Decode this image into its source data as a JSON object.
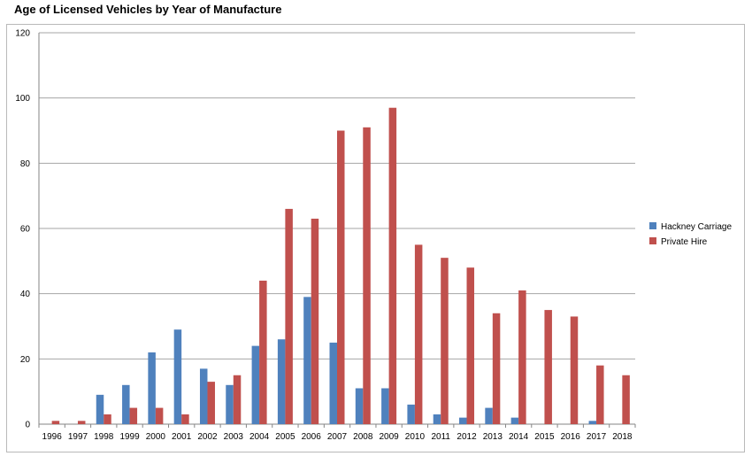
{
  "chart_data": {
    "type": "bar",
    "title": "Age of Licensed Vehicles by Year of Manufacture",
    "xlabel": "",
    "ylabel": "",
    "ylim": [
      0,
      120
    ],
    "yticks": [
      0,
      20,
      40,
      60,
      80,
      100,
      120
    ],
    "grid": true,
    "legend_position": "right",
    "categories": [
      "1996",
      "1997",
      "1998",
      "1999",
      "2000",
      "2001",
      "2002",
      "2003",
      "2004",
      "2005",
      "2006",
      "2007",
      "2008",
      "2009",
      "2010",
      "2011",
      "2012",
      "2013",
      "2014",
      "2015",
      "2016",
      "2017",
      "2018"
    ],
    "series": [
      {
        "name": "Hackney Carriage",
        "color": "#4f81bd",
        "values": [
          0,
          0,
          9,
          12,
          22,
          29,
          17,
          12,
          24,
          26,
          39,
          25,
          11,
          11,
          6,
          3,
          2,
          5,
          2,
          0,
          0,
          1,
          0
        ]
      },
      {
        "name": "Private Hire",
        "color": "#c0504d",
        "values": [
          1,
          1,
          3,
          5,
          5,
          3,
          13,
          15,
          44,
          66,
          63,
          90,
          91,
          97,
          55,
          51,
          48,
          34,
          41,
          35,
          33,
          18,
          15
        ]
      }
    ]
  }
}
